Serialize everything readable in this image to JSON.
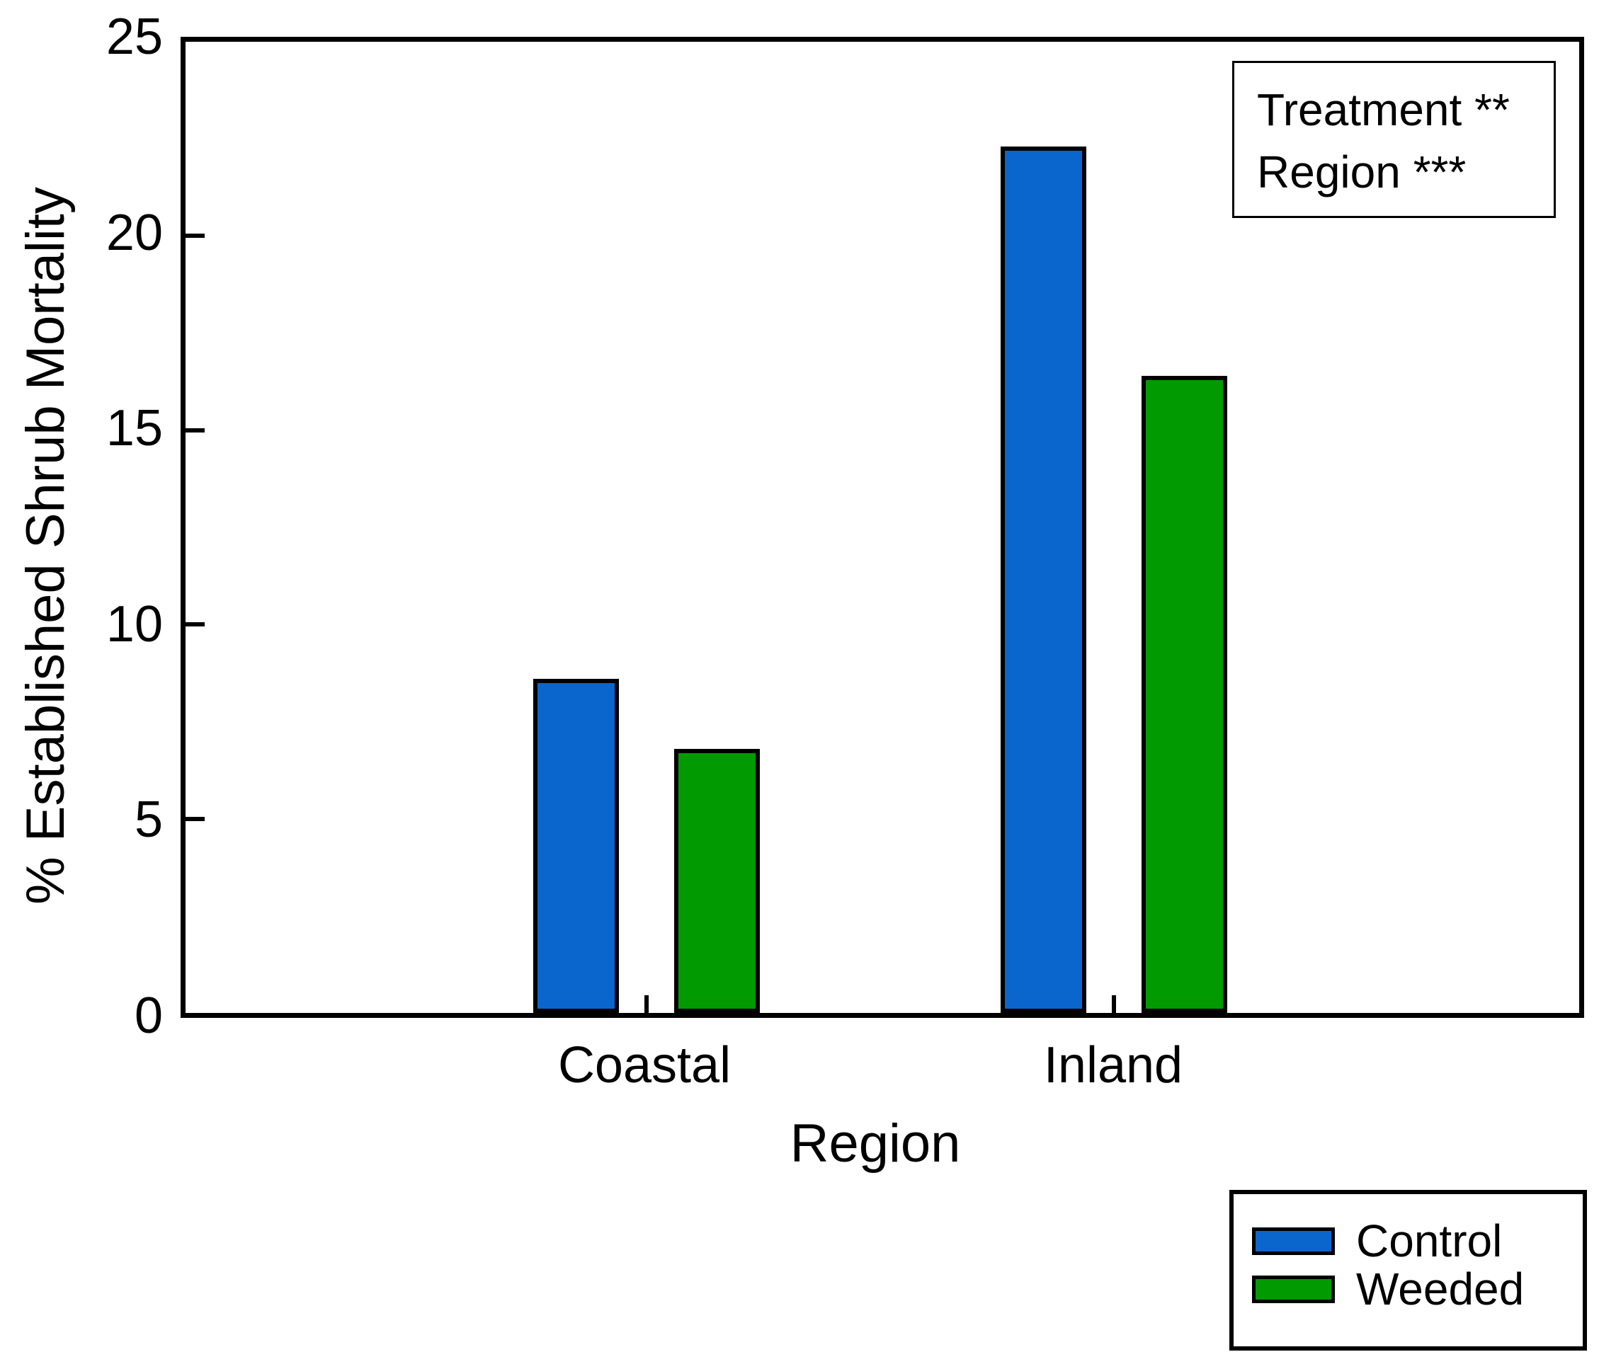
{
  "chart_data": {
    "type": "bar",
    "title": "",
    "xlabel": "Region",
    "ylabel": "% Established Shrub Mortality",
    "categories": [
      "Coastal",
      "Inland"
    ],
    "series": [
      {
        "name": "Control",
        "color": "#0a66cc",
        "values": [
          8.6,
          22.3
        ]
      },
      {
        "name": "Weeded",
        "color": "#019a01",
        "values": [
          6.8,
          16.4
        ]
      }
    ],
    "ylim": [
      0,
      25
    ],
    "yticks": [
      0,
      5,
      10,
      15,
      20,
      25
    ],
    "grid": false,
    "bar_outline_color": "#000000",
    "frame_color": "#000000",
    "background_color": "#ffffff",
    "annotation": {
      "position": "top-right",
      "lines": [
        "Treatment **",
        "Region ***"
      ]
    },
    "legend": {
      "position": "outside-bottom-right",
      "items": [
        "Control",
        "Weeded"
      ]
    }
  }
}
